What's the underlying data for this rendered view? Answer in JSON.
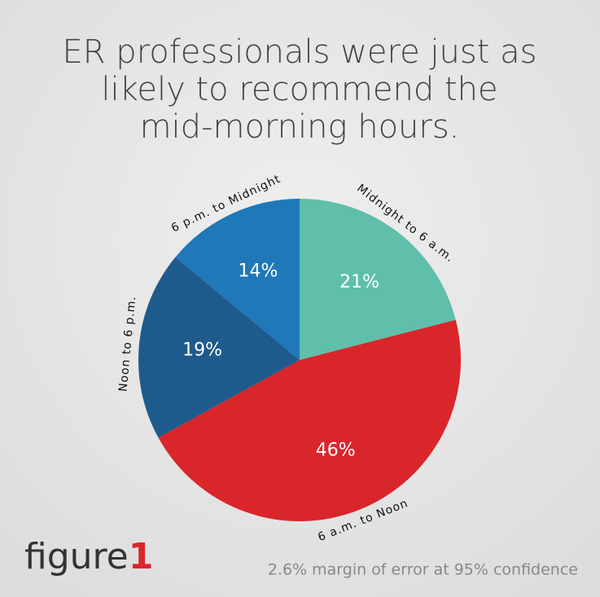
{
  "chart_data": {
    "type": "pie",
    "title_lines": [
      "ER professionals were just as",
      "likely to recommend the",
      "mid-morning hours."
    ],
    "categories": [
      "Midnight to 6 a.m.",
      "6 a.m. to Noon",
      "Noon to 6 p.m.",
      "6 p.m. to Midnight"
    ],
    "values": [
      21,
      46,
      19,
      14
    ],
    "value_labels": [
      "21%",
      "46%",
      "19%",
      "14%"
    ],
    "colors": [
      "#5fbfaa",
      "#d9262b",
      "#1f5a8c",
      "#1f78b8"
    ],
    "note": "2.6% margin of error at 95% confidence",
    "brand": [
      "figure",
      "1"
    ]
  }
}
